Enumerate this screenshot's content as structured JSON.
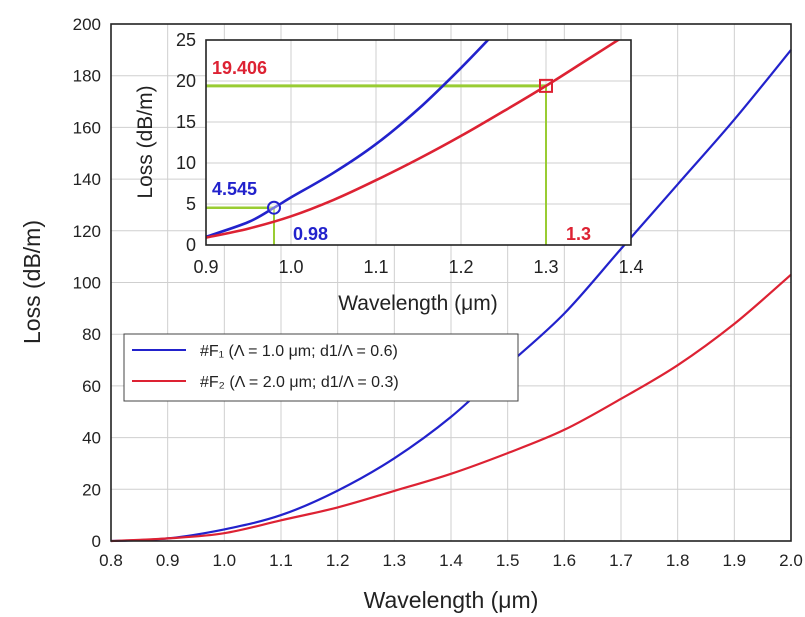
{
  "colors": {
    "blue": "#2222cc",
    "red": "#dd2233",
    "green": "#99cc33",
    "grid": "#cfcfcf"
  },
  "chart_data": [
    {
      "type": "line",
      "xlabel": "Wavelength (μm)",
      "ylabel": "Loss (dB/m)",
      "xlim": [
        0.8,
        2.0
      ],
      "ylim": [
        0,
        200
      ],
      "xticks": [
        "0.8",
        "0.9",
        "1.0",
        "1.1",
        "1.2",
        "1.3",
        "1.4",
        "1.5",
        "1.6",
        "1.7",
        "1.8",
        "1.9",
        "2.0"
      ],
      "yticks": [
        "0",
        "20",
        "40",
        "60",
        "80",
        "100",
        "120",
        "140",
        "160",
        "180",
        "200"
      ],
      "grid": true,
      "legend_position": "middle-left",
      "series": [
        {
          "name": "#F₁ (Λ =  1.0 μm; d1/Λ =  0.6)",
          "color": "#2222cc",
          "x": [
            0.8,
            0.9,
            1.0,
            1.1,
            1.2,
            1.3,
            1.4,
            1.5,
            1.6,
            1.7,
            1.8,
            1.9,
            2.0
          ],
          "y": [
            0,
            1,
            4.5,
            10,
            19.5,
            32,
            48,
            68,
            88,
            113,
            138,
            163,
            190
          ]
        },
        {
          "name": "#F₂ (Λ =  2.0 μm; d1/Λ =  0.3)",
          "color": "#dd2233",
          "x": [
            0.8,
            0.9,
            1.0,
            1.1,
            1.2,
            1.3,
            1.4,
            1.5,
            1.6,
            1.7,
            1.8,
            1.9,
            2.0
          ],
          "y": [
            0,
            1,
            3,
            8,
            13,
            19.4,
            26,
            34,
            43,
            55,
            68,
            84,
            103
          ]
        }
      ]
    },
    {
      "type": "line",
      "xlabel": "Wavelength (μm)",
      "ylabel": "Loss (dB/m)",
      "xlim": [
        0.9,
        1.4
      ],
      "ylim": [
        0,
        25
      ],
      "xticks": [
        "0.9",
        "1.0",
        "1.1",
        "1.2",
        "1.3",
        "1.4"
      ],
      "yticks": [
        "0",
        "5",
        "10",
        "15",
        "20",
        "25"
      ],
      "grid": true,
      "series": [
        {
          "color": "#2222cc",
          "x": [
            0.9,
            0.95,
            0.98,
            1.0,
            1.05,
            1.1,
            1.15,
            1.2,
            1.25
          ],
          "y": [
            1,
            2.8,
            4.545,
            5.8,
            8.8,
            12.3,
            16.6,
            21.6,
            27
          ]
        },
        {
          "color": "#dd2233",
          "x": [
            0.9,
            0.95,
            1.0,
            1.05,
            1.1,
            1.15,
            1.2,
            1.25,
            1.3,
            1.35,
            1.4
          ],
          "y": [
            0.9,
            2.0,
            3.5,
            5.5,
            7.9,
            10.5,
            13.3,
            16.3,
            19.406,
            22.7,
            26
          ]
        }
      ],
      "annotations": {
        "red_y": "19.406",
        "blue_y": "4.545",
        "blue_x": "0.98",
        "red_x": "1.3"
      }
    }
  ]
}
